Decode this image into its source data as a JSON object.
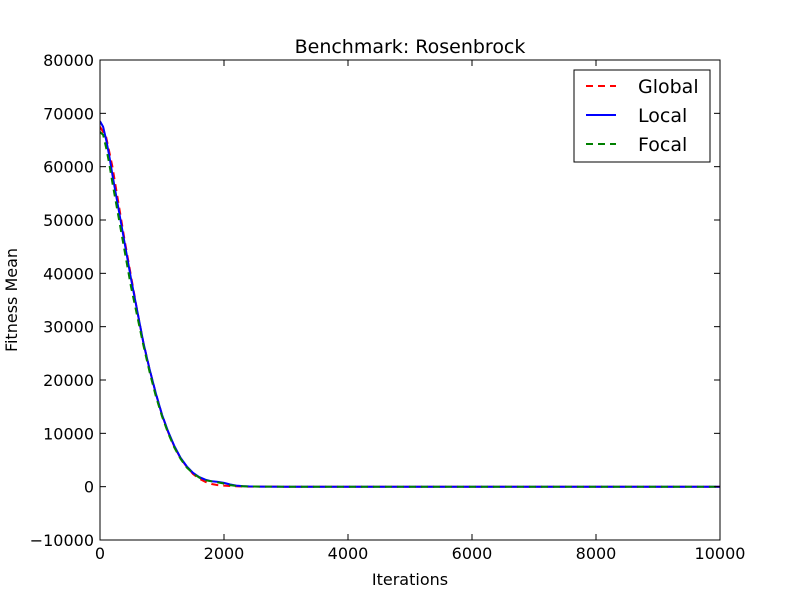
{
  "chart_data": {
    "type": "line",
    "title": "Benchmark: Rosenbrock",
    "xlabel": "Iterations",
    "ylabel": "Fitness Mean",
    "xlim": [
      0,
      10000
    ],
    "ylim": [
      -10000,
      80000
    ],
    "xticks": [
      0,
      2000,
      4000,
      6000,
      8000,
      10000
    ],
    "yticks": [
      -10000,
      0,
      10000,
      20000,
      30000,
      40000,
      50000,
      60000,
      70000,
      80000
    ],
    "xtick_labels": [
      "0",
      "2000",
      "4000",
      "6000",
      "8000",
      "10000"
    ],
    "ytick_labels": [
      "−10000",
      "0",
      "10000",
      "20000",
      "30000",
      "40000",
      "50000",
      "60000",
      "70000",
      "80000"
    ],
    "grid": false,
    "legend_position": "top-right",
    "series": [
      {
        "name": "Global",
        "color": "#ff0000",
        "style": "dashed",
        "x": [
          0,
          100,
          200,
          300,
          400,
          500,
          600,
          700,
          800,
          900,
          1000,
          1100,
          1200,
          1300,
          1400,
          1500,
          1600,
          1700,
          1800,
          1900,
          2000,
          2100,
          2200,
          2300,
          2400,
          2600,
          3000,
          4000,
          5000,
          6000,
          7000,
          8000,
          9000,
          10000
        ],
        "y": [
          67500,
          65500,
          60000,
          53000,
          46000,
          39500,
          33000,
          27000,
          22000,
          17500,
          13500,
          10200,
          7500,
          5300,
          3700,
          2400,
          1500,
          900,
          500,
          300,
          200,
          120,
          60,
          30,
          10,
          5,
          0,
          0,
          0,
          0,
          0,
          0,
          0,
          0
        ]
      },
      {
        "name": "Local",
        "color": "#0000ff",
        "style": "solid",
        "x": [
          0,
          50,
          100,
          150,
          200,
          300,
          400,
          500,
          600,
          700,
          800,
          900,
          1000,
          1100,
          1200,
          1300,
          1400,
          1500,
          1600,
          1700,
          1800,
          1900,
          2000,
          2100,
          2200,
          2300,
          2400,
          2600,
          3000,
          4000,
          5000,
          6000,
          7000,
          8000,
          9000,
          10000
        ],
        "y": [
          68500,
          67500,
          65000,
          62000,
          58500,
          52000,
          45500,
          39000,
          33000,
          27000,
          22000,
          17500,
          13500,
          10300,
          7600,
          5400,
          3800,
          2600,
          1800,
          1300,
          1000,
          900,
          700,
          400,
          200,
          100,
          50,
          20,
          0,
          0,
          0,
          0,
          0,
          0,
          0,
          0
        ]
      },
      {
        "name": "Focal",
        "color": "#008000",
        "style": "dashed",
        "x": [
          0,
          50,
          100,
          150,
          200,
          300,
          400,
          500,
          600,
          700,
          800,
          900,
          1000,
          1100,
          1200,
          1300,
          1400,
          1500,
          1600,
          1700,
          1800,
          1900,
          2000,
          2100,
          2200,
          2300,
          2400,
          2600,
          3000,
          4000,
          5000,
          6000,
          7000,
          8000,
          9000,
          10000
        ],
        "y": [
          66500,
          66000,
          63500,
          60500,
          57000,
          50500,
          44000,
          37500,
          32000,
          26500,
          21500,
          17000,
          13200,
          10000,
          7300,
          5200,
          3600,
          2500,
          1700,
          1200,
          1000,
          800,
          600,
          300,
          150,
          80,
          40,
          15,
          0,
          0,
          0,
          0,
          0,
          0,
          0,
          0
        ]
      }
    ]
  }
}
